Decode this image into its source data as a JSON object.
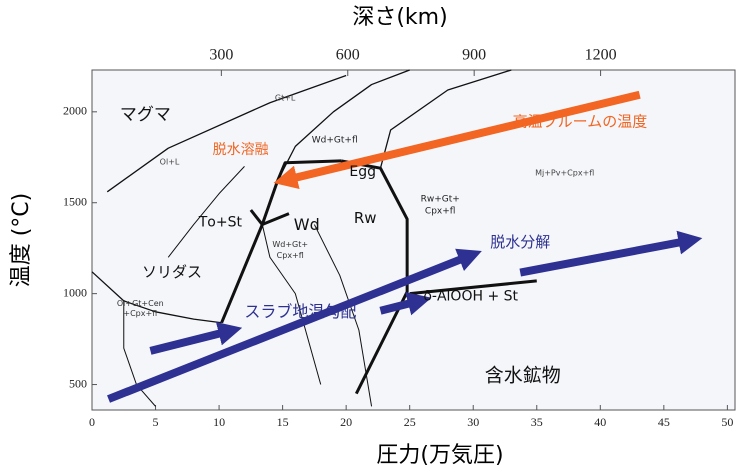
{
  "chart_data": {
    "type": "line",
    "title": "深さ(km)",
    "xlabel": "圧力(万気圧)",
    "ylabel": "温度 (°C)",
    "xlim": [
      0,
      50.6
    ],
    "ylim": [
      360,
      2230
    ],
    "x2lim": [
      -7,
      1519
    ],
    "xticks": [
      0,
      5,
      10,
      15,
      20,
      25,
      30,
      35,
      40,
      45,
      50
    ],
    "yticks": [
      500,
      1000,
      1500,
      2000
    ],
    "x2ticks": [
      300,
      600,
      900,
      1200
    ],
    "lines": [
      {
        "width": 3,
        "x": [
          10.2,
          13.4,
          14.6,
          15.2,
          19.6
        ],
        "y": [
          840,
          1380,
          1620,
          1720,
          1730
        ]
      },
      {
        "width": 3,
        "x": [
          20.8,
          24.8,
          24.8,
          22.7,
          19.6
        ],
        "y": [
          450,
          1010,
          1410,
          1690,
          1730
        ]
      },
      {
        "width": 3,
        "x": [
          25,
          35
        ],
        "y": [
          1000,
          1070
        ]
      },
      {
        "width": 3,
        "x": [
          12.5,
          13.4,
          15.5
        ],
        "y": [
          1460,
          1380,
          1440
        ]
      },
      {
        "width": 1.3,
        "x": [
          1.2,
          6,
          14,
          20
        ],
        "y": [
          1560,
          1800,
          2050,
          2200
        ]
      },
      {
        "width": 1.3,
        "x": [
          14.6,
          16,
          19,
          22,
          25
        ],
        "y": [
          1620,
          1810,
          2000,
          2150,
          2230
        ]
      },
      {
        "width": 1.3,
        "x": [
          22.7,
          23.5,
          28,
          33
        ],
        "y": [
          1690,
          1900,
          2120,
          2230
        ]
      },
      {
        "width": 1.3,
        "x": [
          0,
          2.5,
          5,
          8,
          10.2
        ],
        "y": [
          1120,
          960,
          900,
          860,
          840
        ]
      },
      {
        "width": 1,
        "x": [
          2.5,
          2.5,
          3.5,
          5
        ],
        "y": [
          960,
          700,
          500,
          380
        ]
      },
      {
        "width": 1,
        "x": [
          13.4,
          14,
          16,
          18
        ],
        "y": [
          1380,
          1200,
          1000,
          500
        ]
      },
      {
        "width": 1,
        "x": [
          17.5,
          19.5,
          21,
          22
        ],
        "y": [
          1380,
          1100,
          800,
          380
        ]
      },
      {
        "width": 1,
        "x": [
          6,
          8,
          10,
          12
        ],
        "y": [
          1200,
          1380,
          1550,
          1700
        ]
      }
    ],
    "arrows": [
      {
        "color": "#f26522",
        "x": [
          43.1,
          15.2
        ],
        "y": [
          2094,
          1624
        ]
      },
      {
        "color": "#2e3192",
        "x": [
          1.3,
          29.8
        ],
        "y": [
          420,
          1210
        ]
      },
      {
        "color": "#2e3192",
        "x": [
          4.6,
          10.9
        ],
        "y": [
          685,
          796
        ]
      },
      {
        "color": "#2e3192",
        "x": [
          22.7,
          25.8
        ],
        "y": [
          906,
          961
        ]
      },
      {
        "color": "#2e3192",
        "x": [
          33.7,
          47.1
        ],
        "y": [
          1116,
          1293
        ]
      }
    ],
    "annotations": [
      {
        "text": "マグマ",
        "x": 4.2,
        "y": 1983,
        "size": 17,
        "color": "#111111"
      },
      {
        "text": "高温プルームの温度",
        "x": 38.4,
        "y": 1945,
        "size": 15,
        "color": "#f26522"
      },
      {
        "text": "脱水溶融",
        "x": 11.7,
        "y": 1790,
        "size": 14,
        "color": "#f26522"
      },
      {
        "text": "Egg",
        "x": 21.3,
        "y": 1668,
        "size": 14,
        "color": "#111111"
      },
      {
        "text": "Wd",
        "x": 16.9,
        "y": 1376,
        "size": 16,
        "color": "#111111"
      },
      {
        "text": "Rw",
        "x": 21.5,
        "y": 1414,
        "size": 15,
        "color": "#111111"
      },
      {
        "text": "Tο+St",
        "x": 10.1,
        "y": 1392,
        "size": 14,
        "color": "#111111"
      },
      {
        "text": "ソリダス",
        "x": 6.3,
        "y": 1116,
        "size": 15,
        "color": "#111111"
      },
      {
        "text": "脱水分解",
        "x": 33.7,
        "y": 1282,
        "size": 15,
        "color": "#2e3192"
      },
      {
        "text": "δ-AlOOH + St",
        "x": 29.8,
        "y": 983,
        "size": 14,
        "color": "#111111"
      },
      {
        "text": "スラブ地温勾配",
        "x": 16.4,
        "y": 895,
        "size": 16,
        "color": "#2e3192"
      },
      {
        "text": "含水鉱物",
        "x": 33.9,
        "y": 547,
        "size": 19,
        "color": "#111111"
      },
      {
        "text": "Gt+L",
        "x": 15.2,
        "y": 2077,
        "size": 8,
        "color": "#444444"
      },
      {
        "text": "Ol+L",
        "x": 6.1,
        "y": 1724,
        "size": 8,
        "color": "#444444"
      },
      {
        "text": "Wd+Gt+fl",
        "x": 19.1,
        "y": 1845,
        "size": 9,
        "color": "#222222"
      },
      {
        "text": "Mj+Pv+Cpx+fl",
        "x": 37.2,
        "y": 1663,
        "size": 8,
        "color": "#444444"
      },
      {
        "text": "Rw+Gt+",
        "x": 27.4,
        "y": 1520,
        "size": 9,
        "color": "#222222"
      },
      {
        "text": "Cpx+fl",
        "x": 27.4,
        "y": 1455,
        "size": 9,
        "color": "#222222"
      },
      {
        "text": "Wd+Gt+",
        "x": 15.6,
        "y": 1270,
        "size": 8,
        "color": "#333333"
      },
      {
        "text": "Cpx+fl",
        "x": 15.6,
        "y": 1210,
        "size": 8,
        "color": "#333333"
      },
      {
        "text": "Ol+Gt+Cen",
        "x": 3.8,
        "y": 945,
        "size": 8,
        "color": "#333333"
      },
      {
        "text": "+Cpx+fl",
        "x": 3.8,
        "y": 890,
        "size": 8,
        "color": "#333333"
      }
    ]
  }
}
